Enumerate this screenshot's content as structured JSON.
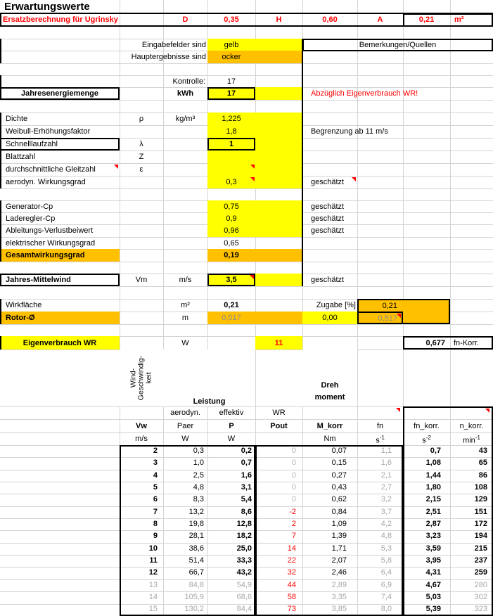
{
  "colors": {
    "input_bg": "#FFFF00",
    "result_bg": "#FFC000",
    "accent_red": "#FF0000",
    "dim_text": "#A6A6A6",
    "gridline": "#D4D4D4"
  },
  "title": "Erwartungswerte",
  "ersatz": {
    "label": "Ersatzberechnung für Ugrinsky",
    "d_label": "D",
    "d_value": "0,35",
    "h_label": "H",
    "h_value": "0,60",
    "a_label": "A",
    "a_value": "0,21",
    "a_unit": "m²"
  },
  "legend": {
    "inputs_label": "Eingabefelder sind",
    "inputs_value": "gelb",
    "results_label": "Hauptergebnisse sind",
    "results_value": "ocker",
    "remarks_header": "Bemerkungen/Quellen"
  },
  "kontrolle": {
    "label": "Kontrolle:",
    "value": "17"
  },
  "energy": {
    "label": "Jahresenergiemenge",
    "unit": "kWh",
    "value": "17",
    "remark": "Abzüglich Eigenverbrauch WR!"
  },
  "params": [
    {
      "label": "Dichte",
      "symbol": "ρ",
      "unit": "kg/m³",
      "value": "1,225",
      "remark": ""
    },
    {
      "label": "Weibull-Erhöhungsfaktor",
      "symbol": "",
      "unit": "",
      "value": "1,8",
      "remark": "Begrenzung ab 11 m/s"
    },
    {
      "label": "Schnelllaufzahl",
      "symbol": "λ",
      "unit": "",
      "value": "1",
      "remark": ""
    },
    {
      "label": "Blattzahl",
      "symbol": "Z",
      "unit": "",
      "value": "",
      "remark": ""
    },
    {
      "label": "durchschnittliche Gleitzahl",
      "symbol": "ε",
      "unit": "",
      "value": "",
      "remark": ""
    },
    {
      "label": "aerodyn. Wirkungsgrad",
      "symbol": "",
      "unit": "",
      "value": "0,3",
      "remark": "geschätzt"
    }
  ],
  "efficiency": [
    {
      "label": "Generator-Cp",
      "value": "0,75",
      "remark": "geschätzt"
    },
    {
      "label": "Laderegler-Cp",
      "value": "0,9",
      "remark": "geschätzt"
    },
    {
      "label": "Ableitungs-Verlustbeiwert",
      "value": "0,96",
      "remark": "geschätzt"
    },
    {
      "label": "elektrischer Wirkungsgrad",
      "value": "0,65",
      "remark": ""
    },
    {
      "label": "Gesamtwirkungsgrad",
      "value": "0,19",
      "remark": ""
    }
  ],
  "wind": {
    "label": "Jahres-Mittelwind",
    "symbol": "Vm",
    "unit": "m/s",
    "value": "3,5",
    "remark": "geschätzt"
  },
  "geometry": {
    "area_label": "Wirkfläche",
    "area_unit": "m²",
    "area_value": "0,21",
    "zugabe_label": "Zugabe [%]",
    "zugabe_value": "0,00",
    "area_corr": "0,21",
    "rotor_label": "Rotor-Ø",
    "rotor_unit": "m",
    "rotor_value": "0,517",
    "rotor_corr": "0,517"
  },
  "eigen": {
    "label": "Eigenverbrauch WR",
    "unit": "W",
    "value": "11",
    "fnkorr_value": "0,677",
    "fnkorr_label": "fn-Korr."
  },
  "table": {
    "wind_header": "Wind-\nGeschwindig-\nkeit",
    "leistung_header": "Leistung",
    "moment_header": "Dreh\nmoment",
    "sub1": {
      "paer": "aerodyn.",
      "p": "effektiv",
      "pout": "WR"
    },
    "cols": {
      "vw": "Vw",
      "paer": "Paer",
      "p": "P",
      "pout": "Pout",
      "mkorr": "M_korr",
      "fn": "fn",
      "fnkorr": "fn_korr.",
      "nkorr": "n_korr."
    },
    "units": {
      "vw": "m/s",
      "paer": "W",
      "p": "W",
      "pout": "",
      "mkorr": "Nm",
      "fn_base": "s",
      "fn_exp": "-1",
      "fnkorr_base": "s",
      "fnkorr_exp": "-2",
      "nkorr_base": "min",
      "nkorr_exp": "-1"
    },
    "rows": [
      {
        "vw": "2",
        "paer": "0,3",
        "p": "0,2",
        "pout": "0",
        "mkorr": "0,07",
        "fn": "1,1",
        "fnkorr": "0,7",
        "nkorr": "43",
        "dim": false
      },
      {
        "vw": "3",
        "paer": "1,0",
        "p": "0,7",
        "pout": "0",
        "mkorr": "0,15",
        "fn": "1,6",
        "fnkorr": "1,08",
        "nkorr": "65",
        "dim": false
      },
      {
        "vw": "4",
        "paer": "2,5",
        "p": "1,6",
        "pout": "0",
        "mkorr": "0,27",
        "fn": "2,1",
        "fnkorr": "1,44",
        "nkorr": "86",
        "dim": false
      },
      {
        "vw": "5",
        "paer": "4,8",
        "p": "3,1",
        "pout": "0",
        "mkorr": "0,43",
        "fn": "2,7",
        "fnkorr": "1,80",
        "nkorr": "108",
        "dim": false
      },
      {
        "vw": "6",
        "paer": "8,3",
        "p": "5,4",
        "pout": "0",
        "mkorr": "0,62",
        "fn": "3,2",
        "fnkorr": "2,15",
        "nkorr": "129",
        "dim": false
      },
      {
        "vw": "7",
        "paer": "13,2",
        "p": "8,6",
        "pout": "-2",
        "mkorr": "0,84",
        "fn": "3,7",
        "fnkorr": "2,51",
        "nkorr": "151",
        "dim": false
      },
      {
        "vw": "8",
        "paer": "19,8",
        "p": "12,8",
        "pout": "2",
        "mkorr": "1,09",
        "fn": "4,2",
        "fnkorr": "2,87",
        "nkorr": "172",
        "dim": false
      },
      {
        "vw": "9",
        "paer": "28,1",
        "p": "18,2",
        "pout": "7",
        "mkorr": "1,39",
        "fn": "4,8",
        "fnkorr": "3,23",
        "nkorr": "194",
        "dim": false
      },
      {
        "vw": "10",
        "paer": "38,6",
        "p": "25,0",
        "pout": "14",
        "mkorr": "1,71",
        "fn": "5,3",
        "fnkorr": "3,59",
        "nkorr": "215",
        "dim": false
      },
      {
        "vw": "11",
        "paer": "51,4",
        "p": "33,3",
        "pout": "22",
        "mkorr": "2,07",
        "fn": "5,8",
        "fnkorr": "3,95",
        "nkorr": "237",
        "dim": false
      },
      {
        "vw": "12",
        "paer": "66,7",
        "p": "43,2",
        "pout": "32",
        "mkorr": "2,46",
        "fn": "6,4",
        "fnkorr": "4,31",
        "nkorr": "259",
        "dim": false
      },
      {
        "vw": "13",
        "paer": "84,8",
        "p": "54,9",
        "pout": "44",
        "mkorr": "2,89",
        "fn": "6,9",
        "fnkorr": "4,67",
        "nkorr": "280",
        "dim": true
      },
      {
        "vw": "14",
        "paer": "105,9",
        "p": "68,6",
        "pout": "58",
        "mkorr": "3,35",
        "fn": "7,4",
        "fnkorr": "5,03",
        "nkorr": "302",
        "dim": true
      },
      {
        "vw": "15",
        "paer": "130,2",
        "p": "84,4",
        "pout": "73",
        "mkorr": "3,85",
        "fn": "8,0",
        "fnkorr": "5,39",
        "nkorr": "323",
        "dim": true
      }
    ]
  }
}
